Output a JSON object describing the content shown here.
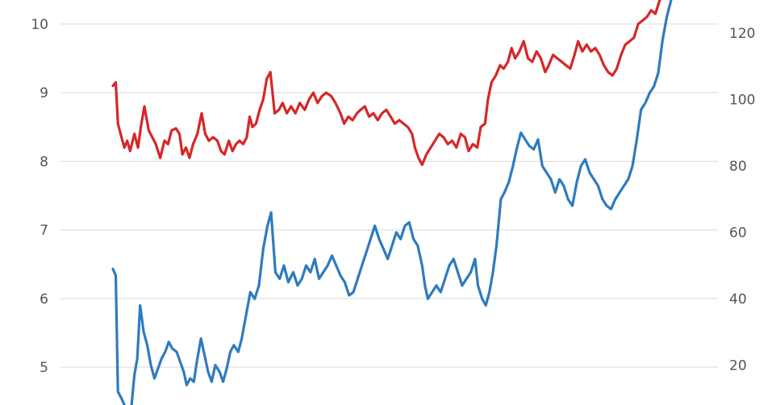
{
  "chart_data": {
    "type": "line",
    "title": "",
    "xlabel": "",
    "grid": true,
    "y_left": {
      "range": [
        4.45,
        10.35
      ],
      "ticks": [
        "5",
        "6",
        "7",
        "8",
        "9",
        "10"
      ]
    },
    "y_right": {
      "range": [
        8,
        130
      ],
      "ticks": [
        "20",
        "40",
        "60",
        "80",
        "100",
        "120"
      ]
    },
    "x_range": [
      0,
      1
    ],
    "series": [
      {
        "key": "red",
        "axis": "left",
        "color": "#d62728",
        "points": [
          [
            0.0,
            9.1
          ],
          [
            0.004,
            9.15
          ],
          [
            0.007,
            8.55
          ],
          [
            0.012,
            8.35
          ],
          [
            0.016,
            8.2
          ],
          [
            0.02,
            8.3
          ],
          [
            0.024,
            8.15
          ],
          [
            0.03,
            8.4
          ],
          [
            0.035,
            8.2
          ],
          [
            0.039,
            8.5
          ],
          [
            0.044,
            8.8
          ],
          [
            0.05,
            8.45
          ],
          [
            0.055,
            8.35
          ],
          [
            0.06,
            8.25
          ],
          [
            0.066,
            8.05
          ],
          [
            0.072,
            8.3
          ],
          [
            0.077,
            8.25
          ],
          [
            0.082,
            8.45
          ],
          [
            0.088,
            8.48
          ],
          [
            0.093,
            8.4
          ],
          [
            0.097,
            8.1
          ],
          [
            0.102,
            8.2
          ],
          [
            0.107,
            8.05
          ],
          [
            0.112,
            8.25
          ],
          [
            0.118,
            8.4
          ],
          [
            0.124,
            8.7
          ],
          [
            0.129,
            8.4
          ],
          [
            0.134,
            8.3
          ],
          [
            0.14,
            8.35
          ],
          [
            0.146,
            8.3
          ],
          [
            0.151,
            8.15
          ],
          [
            0.156,
            8.1
          ],
          [
            0.162,
            8.3
          ],
          [
            0.167,
            8.15
          ],
          [
            0.172,
            8.25
          ],
          [
            0.177,
            8.3
          ],
          [
            0.182,
            8.25
          ],
          [
            0.187,
            8.35
          ],
          [
            0.191,
            8.65
          ],
          [
            0.195,
            8.5
          ],
          [
            0.2,
            8.55
          ],
          [
            0.205,
            8.75
          ],
          [
            0.21,
            8.9
          ],
          [
            0.215,
            9.2
          ],
          [
            0.22,
            9.3
          ],
          [
            0.226,
            8.7
          ],
          [
            0.232,
            8.75
          ],
          [
            0.237,
            8.85
          ],
          [
            0.243,
            8.7
          ],
          [
            0.249,
            8.8
          ],
          [
            0.255,
            8.7
          ],
          [
            0.261,
            8.85
          ],
          [
            0.268,
            8.75
          ],
          [
            0.274,
            8.9
          ],
          [
            0.28,
            9.0
          ],
          [
            0.286,
            8.85
          ],
          [
            0.292,
            8.95
          ],
          [
            0.298,
            9.0
          ],
          [
            0.305,
            8.95
          ],
          [
            0.311,
            8.85
          ],
          [
            0.318,
            8.7
          ],
          [
            0.323,
            8.55
          ],
          [
            0.329,
            8.65
          ],
          [
            0.335,
            8.6
          ],
          [
            0.341,
            8.7
          ],
          [
            0.346,
            8.75
          ],
          [
            0.352,
            8.8
          ],
          [
            0.358,
            8.65
          ],
          [
            0.364,
            8.7
          ],
          [
            0.37,
            8.6
          ],
          [
            0.376,
            8.7
          ],
          [
            0.382,
            8.75
          ],
          [
            0.388,
            8.65
          ],
          [
            0.394,
            8.55
          ],
          [
            0.4,
            8.6
          ],
          [
            0.406,
            8.55
          ],
          [
            0.412,
            8.5
          ],
          [
            0.418,
            8.4
          ],
          [
            0.422,
            8.2
          ],
          [
            0.427,
            8.05
          ],
          [
            0.432,
            7.95
          ],
          [
            0.438,
            8.1
          ],
          [
            0.444,
            8.2
          ],
          [
            0.45,
            8.3
          ],
          [
            0.456,
            8.4
          ],
          [
            0.462,
            8.35
          ],
          [
            0.468,
            8.25
          ],
          [
            0.474,
            8.3
          ],
          [
            0.48,
            8.2
          ],
          [
            0.486,
            8.4
          ],
          [
            0.492,
            8.35
          ],
          [
            0.497,
            8.15
          ],
          [
            0.503,
            8.25
          ],
          [
            0.509,
            8.2
          ],
          [
            0.514,
            8.5
          ],
          [
            0.52,
            8.55
          ],
          [
            0.524,
            8.9
          ],
          [
            0.529,
            9.15
          ],
          [
            0.535,
            9.25
          ],
          [
            0.541,
            9.4
          ],
          [
            0.546,
            9.35
          ],
          [
            0.552,
            9.45
          ],
          [
            0.557,
            9.65
          ],
          [
            0.562,
            9.5
          ],
          [
            0.568,
            9.6
          ],
          [
            0.574,
            9.75
          ],
          [
            0.58,
            9.5
          ],
          [
            0.586,
            9.45
          ],
          [
            0.592,
            9.6
          ],
          [
            0.598,
            9.5
          ],
          [
            0.604,
            9.3
          ],
          [
            0.609,
            9.4
          ],
          [
            0.615,
            9.55
          ],
          [
            0.621,
            9.5
          ],
          [
            0.627,
            9.45
          ],
          [
            0.633,
            9.4
          ],
          [
            0.639,
            9.35
          ],
          [
            0.645,
            9.55
          ],
          [
            0.65,
            9.75
          ],
          [
            0.656,
            9.6
          ],
          [
            0.662,
            9.7
          ],
          [
            0.668,
            9.6
          ],
          [
            0.674,
            9.65
          ],
          [
            0.68,
            9.55
          ],
          [
            0.686,
            9.4
          ],
          [
            0.692,
            9.3
          ],
          [
            0.698,
            9.25
          ],
          [
            0.704,
            9.35
          ],
          [
            0.71,
            9.55
          ],
          [
            0.716,
            9.7
          ],
          [
            0.722,
            9.75
          ],
          [
            0.728,
            9.8
          ],
          [
            0.734,
            10.0
          ],
          [
            0.74,
            10.05
          ],
          [
            0.746,
            10.1
          ],
          [
            0.752,
            10.2
          ],
          [
            0.758,
            10.15
          ],
          [
            0.764,
            10.35
          ],
          [
            0.77,
            10.4
          ]
        ]
      },
      {
        "key": "blue",
        "axis": "right",
        "color": "#2e7bbf",
        "points": [
          [
            0.0,
            49
          ],
          [
            0.004,
            47
          ],
          [
            0.007,
            12
          ],
          [
            0.012,
            10
          ],
          [
            0.016,
            8
          ],
          [
            0.021,
            2
          ],
          [
            0.026,
            8
          ],
          [
            0.03,
            17
          ],
          [
            0.034,
            22
          ],
          [
            0.038,
            38
          ],
          [
            0.043,
            30
          ],
          [
            0.048,
            26
          ],
          [
            0.053,
            20
          ],
          [
            0.058,
            16
          ],
          [
            0.063,
            19
          ],
          [
            0.068,
            22
          ],
          [
            0.073,
            24
          ],
          [
            0.078,
            27
          ],
          [
            0.083,
            25
          ],
          [
            0.089,
            24
          ],
          [
            0.094,
            21
          ],
          [
            0.099,
            18
          ],
          [
            0.103,
            14
          ],
          [
            0.108,
            16
          ],
          [
            0.113,
            15
          ],
          [
            0.118,
            22
          ],
          [
            0.123,
            28
          ],
          [
            0.128,
            23
          ],
          [
            0.133,
            18
          ],
          [
            0.138,
            15
          ],
          [
            0.143,
            20
          ],
          [
            0.149,
            18
          ],
          [
            0.154,
            15
          ],
          [
            0.159,
            19
          ],
          [
            0.164,
            24
          ],
          [
            0.169,
            26
          ],
          [
            0.175,
            24
          ],
          [
            0.18,
            28
          ],
          [
            0.186,
            35
          ],
          [
            0.192,
            42
          ],
          [
            0.198,
            40
          ],
          [
            0.204,
            44
          ],
          [
            0.21,
            55
          ],
          [
            0.216,
            62
          ],
          [
            0.221,
            66
          ],
          [
            0.227,
            48
          ],
          [
            0.233,
            46
          ],
          [
            0.239,
            50
          ],
          [
            0.245,
            45
          ],
          [
            0.252,
            48
          ],
          [
            0.258,
            44
          ],
          [
            0.264,
            46
          ],
          [
            0.27,
            50
          ],
          [
            0.276,
            48
          ],
          [
            0.282,
            52
          ],
          [
            0.288,
            46
          ],
          [
            0.294,
            48
          ],
          [
            0.3,
            50
          ],
          [
            0.306,
            53
          ],
          [
            0.312,
            50
          ],
          [
            0.318,
            47
          ],
          [
            0.324,
            45
          ],
          [
            0.33,
            41
          ],
          [
            0.336,
            42
          ],
          [
            0.342,
            46
          ],
          [
            0.348,
            50
          ],
          [
            0.354,
            54
          ],
          [
            0.36,
            58
          ],
          [
            0.366,
            62
          ],
          [
            0.372,
            58
          ],
          [
            0.378,
            55
          ],
          [
            0.384,
            52
          ],
          [
            0.39,
            56
          ],
          [
            0.396,
            60
          ],
          [
            0.402,
            58
          ],
          [
            0.408,
            62
          ],
          [
            0.414,
            63
          ],
          [
            0.42,
            58
          ],
          [
            0.426,
            56
          ],
          [
            0.432,
            50
          ],
          [
            0.436,
            44
          ],
          [
            0.44,
            40
          ],
          [
            0.446,
            42
          ],
          [
            0.452,
            44
          ],
          [
            0.458,
            42
          ],
          [
            0.464,
            46
          ],
          [
            0.47,
            50
          ],
          [
            0.476,
            52
          ],
          [
            0.482,
            48
          ],
          [
            0.488,
            44
          ],
          [
            0.494,
            46
          ],
          [
            0.5,
            48
          ],
          [
            0.506,
            52
          ],
          [
            0.51,
            44
          ],
          [
            0.516,
            40
          ],
          [
            0.521,
            38
          ],
          [
            0.526,
            42
          ],
          [
            0.531,
            48
          ],
          [
            0.536,
            56
          ],
          [
            0.542,
            70
          ],
          [
            0.547,
            72
          ],
          [
            0.553,
            75
          ],
          [
            0.559,
            80
          ],
          [
            0.564,
            85
          ],
          [
            0.57,
            90
          ],
          [
            0.576,
            88
          ],
          [
            0.582,
            86
          ],
          [
            0.588,
            85
          ],
          [
            0.594,
            88
          ],
          [
            0.6,
            80
          ],
          [
            0.606,
            78
          ],
          [
            0.612,
            76
          ],
          [
            0.618,
            72
          ],
          [
            0.624,
            76
          ],
          [
            0.63,
            74
          ],
          [
            0.636,
            70
          ],
          [
            0.642,
            68
          ],
          [
            0.648,
            75
          ],
          [
            0.654,
            80
          ],
          [
            0.66,
            82
          ],
          [
            0.666,
            78
          ],
          [
            0.672,
            76
          ],
          [
            0.678,
            74
          ],
          [
            0.684,
            70
          ],
          [
            0.69,
            68
          ],
          [
            0.696,
            67
          ],
          [
            0.702,
            70
          ],
          [
            0.708,
            72
          ],
          [
            0.714,
            74
          ],
          [
            0.72,
            76
          ],
          [
            0.726,
            80
          ],
          [
            0.732,
            88
          ],
          [
            0.738,
            97
          ],
          [
            0.744,
            99
          ],
          [
            0.75,
            102
          ],
          [
            0.756,
            104
          ],
          [
            0.762,
            108
          ],
          [
            0.768,
            118
          ],
          [
            0.774,
            125
          ],
          [
            0.78,
            130
          ]
        ]
      }
    ]
  }
}
